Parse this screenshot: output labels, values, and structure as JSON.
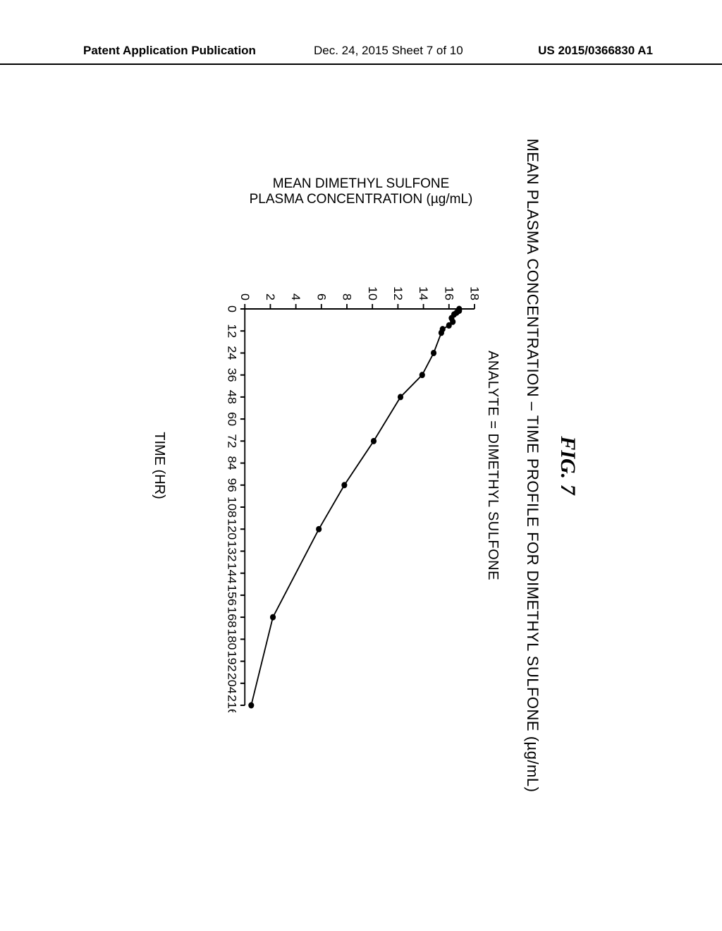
{
  "header": {
    "left": "Patent Application Publication",
    "center": "Dec. 24, 2015  Sheet 7 of 10",
    "right": "US 2015/0366830 A1"
  },
  "figure": {
    "label": "FIG. 7",
    "caption": "MEAN PLASMA CONCENTRATION – TIME PROFILE FOR DIMETHYL SULFONE (µg/mL)",
    "analyte_label": "ANALYTE = DIMETHYL SULFONE",
    "xlabel": "TIME (HR)",
    "ylabel_line1": "MEAN DIMETHYL SULFONE",
    "ylabel_line2": "PLASMA CONCENTRATION (µg/mL)",
    "chart": {
      "type": "line",
      "xlim": [
        0,
        216
      ],
      "ylim": [
        0,
        18
      ],
      "xtick_step": 12,
      "ytick_step": 2,
      "xticks": [
        0,
        12,
        24,
        36,
        48,
        60,
        72,
        84,
        96,
        108,
        120,
        132,
        144,
        156,
        168,
        180,
        192,
        204,
        216
      ],
      "yticks": [
        0,
        2,
        4,
        6,
        8,
        10,
        12,
        14,
        16,
        18
      ],
      "marker_radius": 4.5,
      "marker_color": "#000000",
      "line_color": "#000000",
      "line_width": 2,
      "background_color": "#ffffff",
      "points": [
        {
          "x": 0,
          "y": 16.8
        },
        {
          "x": 1,
          "y": 16.8
        },
        {
          "x": 2,
          "y": 16.6
        },
        {
          "x": 3,
          "y": 16.4
        },
        {
          "x": 5,
          "y": 16.2
        },
        {
          "x": 7,
          "y": 16.3
        },
        {
          "x": 9,
          "y": 16.0
        },
        {
          "x": 11,
          "y": 15.5
        },
        {
          "x": 13,
          "y": 15.4
        },
        {
          "x": 24,
          "y": 14.8
        },
        {
          "x": 36,
          "y": 13.9
        },
        {
          "x": 48,
          "y": 12.2
        },
        {
          "x": 72,
          "y": 10.1
        },
        {
          "x": 96,
          "y": 7.8
        },
        {
          "x": 120,
          "y": 5.8
        },
        {
          "x": 168,
          "y": 2.2
        },
        {
          "x": 216,
          "y": 0.5
        }
      ]
    }
  }
}
